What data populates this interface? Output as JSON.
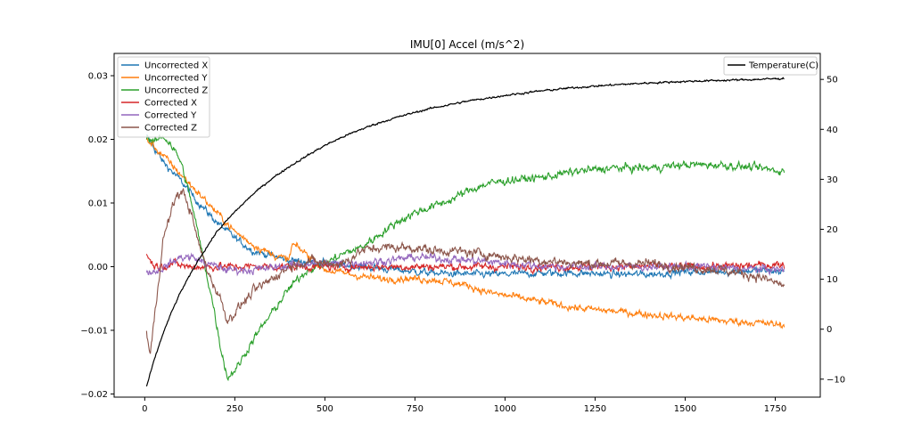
{
  "chart_data": {
    "type": "line",
    "title": "IMU[0] Accel (m/s^2)",
    "xlabel": "",
    "ylabel": "",
    "y2label": "",
    "xlim": [
      -85,
      1875
    ],
    "ylim": [
      -0.0205,
      0.0335
    ],
    "y2lim": [
      -13.6,
      55.2
    ],
    "x_ticks": [
      0,
      250,
      500,
      750,
      1000,
      1250,
      1500,
      1750
    ],
    "y_ticks": [
      -0.02,
      -0.01,
      0.0,
      0.01,
      0.02,
      0.03
    ],
    "y_tick_labels": [
      "−0.02",
      "−0.01",
      "0.00",
      "0.01",
      "0.02",
      "0.03"
    ],
    "y2_ticks": [
      -10,
      0,
      10,
      20,
      30,
      40,
      50
    ],
    "y2_tick_labels": [
      "−10",
      "0",
      "10",
      "20",
      "30",
      "40",
      "50"
    ],
    "legend_left": {
      "placement": "upper-left"
    },
    "legend_right": {
      "placement": "upper-right"
    },
    "series": [
      {
        "name": "Uncorrected X",
        "color": "#1f77b4",
        "axis": "left",
        "noise": 0.00045,
        "points": [
          [
            5,
            0.0205
          ],
          [
            50,
            0.0165
          ],
          [
            100,
            0.0135
          ],
          [
            150,
            0.01
          ],
          [
            200,
            0.007
          ],
          [
            250,
            0.0045
          ],
          [
            300,
            0.0025
          ],
          [
            400,
            0.001
          ],
          [
            500,
            0.0005
          ],
          [
            600,
            0.0
          ],
          [
            700,
            -0.0005
          ],
          [
            800,
            -0.001
          ],
          [
            900,
            -0.0012
          ],
          [
            1000,
            -0.0012
          ],
          [
            1100,
            -0.001
          ],
          [
            1200,
            -0.001
          ],
          [
            1300,
            -0.0012
          ],
          [
            1400,
            -0.0012
          ],
          [
            1500,
            -0.0008
          ],
          [
            1600,
            -0.0008
          ],
          [
            1700,
            -0.0006
          ],
          [
            1775,
            -0.0008
          ]
        ]
      },
      {
        "name": "Uncorrected Y",
        "color": "#ff7f0e",
        "axis": "left",
        "noise": 0.00045,
        "points": [
          [
            5,
            0.02
          ],
          [
            50,
            0.0175
          ],
          [
            100,
            0.0145
          ],
          [
            150,
            0.0115
          ],
          [
            200,
            0.0085
          ],
          [
            250,
            0.0055
          ],
          [
            300,
            0.0035
          ],
          [
            350,
            0.002
          ],
          [
            400,
            0.001
          ],
          [
            410,
            0.0035
          ],
          [
            450,
            0.002
          ],
          [
            500,
            -0.0005
          ],
          [
            600,
            -0.0015
          ],
          [
            660,
            -0.002
          ],
          [
            700,
            -0.0018
          ],
          [
            800,
            -0.002
          ],
          [
            900,
            -0.003
          ],
          [
            950,
            -0.004
          ],
          [
            1000,
            -0.0045
          ],
          [
            1100,
            -0.0055
          ],
          [
            1200,
            -0.0065
          ],
          [
            1300,
            -0.007
          ],
          [
            1400,
            -0.0075
          ],
          [
            1500,
            -0.008
          ],
          [
            1600,
            -0.0085
          ],
          [
            1700,
            -0.0088
          ],
          [
            1775,
            -0.0092
          ]
        ]
      },
      {
        "name": "Uncorrected Z",
        "color": "#2ca02c",
        "axis": "left",
        "noise": 0.0005,
        "points": [
          [
            5,
            0.0205
          ],
          [
            25,
            0.0195
          ],
          [
            50,
            0.0205
          ],
          [
            70,
            0.0195
          ],
          [
            100,
            0.0165
          ],
          [
            130,
            0.01
          ],
          [
            160,
            0.002
          ],
          [
            190,
            -0.006
          ],
          [
            210,
            -0.0125
          ],
          [
            230,
            -0.0175
          ],
          [
            260,
            -0.0155
          ],
          [
            300,
            -0.0115
          ],
          [
            350,
            -0.0075
          ],
          [
            400,
            -0.0035
          ],
          [
            450,
            -0.0005
          ],
          [
            500,
            0.0005
          ],
          [
            550,
            0.002
          ],
          [
            600,
            0.003
          ],
          [
            650,
            0.005
          ],
          [
            700,
            0.007
          ],
          [
            750,
            0.0085
          ],
          [
            800,
            0.0095
          ],
          [
            850,
            0.0105
          ],
          [
            900,
            0.012
          ],
          [
            950,
            0.013
          ],
          [
            1000,
            0.0135
          ],
          [
            1100,
            0.014
          ],
          [
            1200,
            0.015
          ],
          [
            1300,
            0.0155
          ],
          [
            1400,
            0.0155
          ],
          [
            1500,
            0.016
          ],
          [
            1600,
            0.016
          ],
          [
            1700,
            0.0155
          ],
          [
            1775,
            0.015
          ]
        ]
      },
      {
        "name": "Corrected X",
        "color": "#d62728",
        "axis": "left",
        "noise": 0.0005,
        "points": [
          [
            5,
            0.002
          ],
          [
            20,
            0.0005
          ],
          [
            40,
            0.0
          ],
          [
            80,
            0.0005
          ],
          [
            120,
            0.0
          ],
          [
            200,
            0.0
          ],
          [
            300,
            0.0
          ],
          [
            400,
            0.0
          ],
          [
            500,
            0.0
          ],
          [
            600,
            0.0
          ],
          [
            700,
            0.0
          ],
          [
            800,
            0.0
          ],
          [
            900,
            0.0
          ],
          [
            1000,
            0.0
          ],
          [
            1100,
            0.0
          ],
          [
            1200,
            0.0
          ],
          [
            1300,
            0.0
          ],
          [
            1400,
            0.0
          ],
          [
            1500,
            0.0
          ],
          [
            1600,
            0.0
          ],
          [
            1700,
            0.0002
          ],
          [
            1775,
            0.0004
          ]
        ]
      },
      {
        "name": "Corrected Y",
        "color": "#9467bd",
        "axis": "left",
        "noise": 0.0005,
        "points": [
          [
            5,
            -0.001
          ],
          [
            40,
            -0.0005
          ],
          [
            70,
            0.0005
          ],
          [
            100,
            0.0015
          ],
          [
            130,
            0.0015
          ],
          [
            170,
            0.0005
          ],
          [
            230,
            -0.0005
          ],
          [
            300,
            -0.0005
          ],
          [
            380,
            0.0
          ],
          [
            450,
            0.0005
          ],
          [
            550,
            0.0005
          ],
          [
            650,
            0.0008
          ],
          [
            750,
            0.0015
          ],
          [
            850,
            0.0012
          ],
          [
            950,
            0.0008
          ],
          [
            1050,
            0.0003
          ],
          [
            1150,
            0.0
          ],
          [
            1250,
            0.0
          ],
          [
            1350,
            0.0
          ],
          [
            1450,
            0.0
          ],
          [
            1550,
            0.0
          ],
          [
            1650,
            -0.0003
          ],
          [
            1775,
            -0.0005
          ]
        ]
      },
      {
        "name": "Corrected Z",
        "color": "#8c564b",
        "axis": "left",
        "noise": 0.0006,
        "points": [
          [
            5,
            -0.01
          ],
          [
            15,
            -0.014
          ],
          [
            25,
            -0.009
          ],
          [
            35,
            -0.004
          ],
          [
            50,
            0.004
          ],
          [
            70,
            0.008
          ],
          [
            90,
            0.0115
          ],
          [
            110,
            0.0115
          ],
          [
            130,
            0.008
          ],
          [
            150,
            0.0035
          ],
          [
            180,
            -0.0015
          ],
          [
            210,
            -0.005
          ],
          [
            230,
            -0.0085
          ],
          [
            260,
            -0.0065
          ],
          [
            300,
            -0.004
          ],
          [
            350,
            -0.002
          ],
          [
            400,
            0.0
          ],
          [
            450,
            0.001
          ],
          [
            500,
            0.0005
          ],
          [
            550,
            0.0005
          ],
          [
            600,
            0.0025
          ],
          [
            650,
            0.003
          ],
          [
            700,
            0.003
          ],
          [
            750,
            0.003
          ],
          [
            800,
            0.0025
          ],
          [
            850,
            0.0025
          ],
          [
            900,
            0.0022
          ],
          [
            950,
            0.002
          ],
          [
            1000,
            0.0015
          ],
          [
            1100,
            0.001
          ],
          [
            1200,
            0.0005
          ],
          [
            1300,
            0.0005
          ],
          [
            1400,
            0.0005
          ],
          [
            1500,
            0.0
          ],
          [
            1600,
            -0.0005
          ],
          [
            1700,
            -0.0015
          ],
          [
            1775,
            -0.003
          ]
        ]
      },
      {
        "name": "Temperature(C)",
        "color": "#000000",
        "axis": "right",
        "noise": 0.15,
        "points": [
          [
            5,
            -11.5
          ],
          [
            25,
            -6.5
          ],
          [
            50,
            -1.0
          ],
          [
            75,
            3.5
          ],
          [
            100,
            7.5
          ],
          [
            150,
            14.0
          ],
          [
            200,
            19.5
          ],
          [
            250,
            23.5
          ],
          [
            300,
            27.0
          ],
          [
            350,
            30.0
          ],
          [
            400,
            32.5
          ],
          [
            450,
            34.7
          ],
          [
            500,
            36.8
          ],
          [
            550,
            38.5
          ],
          [
            600,
            40.0
          ],
          [
            650,
            41.3
          ],
          [
            700,
            42.4
          ],
          [
            750,
            43.4
          ],
          [
            800,
            44.3
          ],
          [
            900,
            45.7
          ],
          [
            1000,
            46.8
          ],
          [
            1100,
            47.7
          ],
          [
            1200,
            48.4
          ],
          [
            1300,
            48.9
          ],
          [
            1400,
            49.3
          ],
          [
            1500,
            49.6
          ],
          [
            1600,
            49.8
          ],
          [
            1700,
            50.0
          ],
          [
            1775,
            50.2
          ]
        ]
      }
    ]
  }
}
